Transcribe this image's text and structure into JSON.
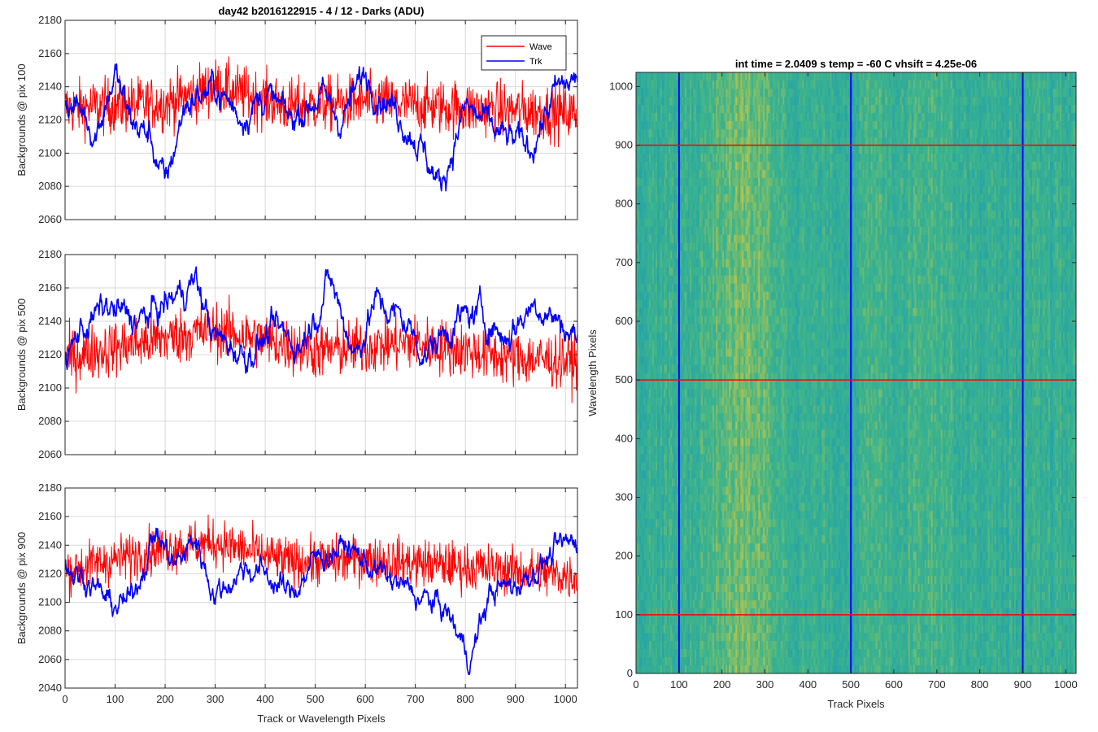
{
  "colors": {
    "wave": "#ff0000",
    "trk": "#0000ff",
    "grid": "#d9d9d9",
    "axis": "#262626",
    "image_low": "#1f9fb0",
    "image_mid": "#3fb58a",
    "image_high": "#cfc63f"
  },
  "chart_data": [
    {
      "type": "line",
      "title": "day42 b2016122915 - 4 / 12 - Darks (ADU)",
      "xlabel": "",
      "ylabel": "Backgrounds @ pix 100",
      "xlim": [
        0,
        1024
      ],
      "ylim": [
        2060,
        2180
      ],
      "yticks": [
        "2060",
        "2080",
        "2100",
        "2120",
        "2140",
        "2160",
        "2180"
      ],
      "grid": true,
      "legend": {
        "position": "top-right",
        "entries": [
          "Wave",
          "Trk"
        ]
      },
      "series": [
        {
          "name": "Wave",
          "mean": 2127,
          "noise": 14,
          "trend": [
            [
              0,
              2127
            ],
            [
              200,
              2130
            ],
            [
              300,
              2140
            ],
            [
              450,
              2128
            ],
            [
              600,
              2131
            ],
            [
              800,
              2127
            ],
            [
              1024,
              2124
            ]
          ]
        },
        {
          "name": "Trk",
          "mean": 2128,
          "noise": 4,
          "trend": [
            [
              0,
              2131
            ],
            [
              40,
              2124
            ],
            [
              60,
              2112
            ],
            [
              100,
              2148
            ],
            [
              130,
              2120
            ],
            [
              170,
              2110
            ],
            [
              200,
              2080
            ],
            [
              240,
              2130
            ],
            [
              300,
              2140
            ],
            [
              350,
              2122
            ],
            [
              400,
              2135
            ],
            [
              450,
              2120
            ],
            [
              510,
              2135
            ],
            [
              550,
              2120
            ],
            [
              600,
              2148
            ],
            [
              650,
              2130
            ],
            [
              700,
              2110
            ],
            [
              750,
              2080
            ],
            [
              800,
              2128
            ],
            [
              870,
              2110
            ],
            [
              930,
              2103
            ],
            [
              980,
              2137
            ],
            [
              1024,
              2145
            ]
          ]
        }
      ]
    },
    {
      "type": "line",
      "title": "",
      "xlabel": "",
      "ylabel": "Backgrounds @ pix 500",
      "xlim": [
        0,
        1024
      ],
      "ylim": [
        2060,
        2180
      ],
      "yticks": [
        "2060",
        "2080",
        "2100",
        "2120",
        "2140",
        "2160",
        "2180"
      ],
      "grid": true,
      "series": [
        {
          "name": "Wave",
          "mean": 2125,
          "noise": 14,
          "trend": [
            [
              0,
              2118
            ],
            [
              200,
              2130
            ],
            [
              300,
              2135
            ],
            [
              500,
              2122
            ],
            [
              700,
              2127
            ],
            [
              900,
              2118
            ],
            [
              1024,
              2116
            ]
          ]
        },
        {
          "name": "Trk",
          "mean": 2135,
          "noise": 4,
          "trend": [
            [
              0,
              2113
            ],
            [
              30,
              2135
            ],
            [
              80,
              2148
            ],
            [
              150,
              2140
            ],
            [
              200,
              2150
            ],
            [
              260,
              2165
            ],
            [
              300,
              2130
            ],
            [
              360,
              2120
            ],
            [
              420,
              2135
            ],
            [
              470,
              2125
            ],
            [
              530,
              2165
            ],
            [
              580,
              2120
            ],
            [
              620,
              2152
            ],
            [
              680,
              2140
            ],
            [
              720,
              2120
            ],
            [
              780,
              2140
            ],
            [
              830,
              2145
            ],
            [
              880,
              2130
            ],
            [
              940,
              2152
            ],
            [
              1024,
              2130
            ]
          ]
        }
      ]
    },
    {
      "type": "line",
      "title": "",
      "xlabel": "Track or Wavelength Pixels",
      "ylabel": "Backgrounds @ pix 900",
      "xlim": [
        0,
        1024
      ],
      "ylim": [
        2040,
        2180
      ],
      "xticks": [
        "0",
        "100",
        "200",
        "300",
        "400",
        "500",
        "600",
        "700",
        "800",
        "900",
        "1000"
      ],
      "yticks": [
        "2040",
        "2060",
        "2080",
        "2100",
        "2120",
        "2140",
        "2160",
        "2180"
      ],
      "grid": true,
      "series": [
        {
          "name": "Wave",
          "mean": 2127,
          "noise": 14,
          "trend": [
            [
              0,
              2122
            ],
            [
              200,
              2138
            ],
            [
              300,
              2142
            ],
            [
              450,
              2128
            ],
            [
              600,
              2130
            ],
            [
              800,
              2125
            ],
            [
              1024,
              2118
            ]
          ]
        },
        {
          "name": "Trk",
          "mean": 2120,
          "noise": 4,
          "trend": [
            [
              0,
              2125
            ],
            [
              50,
              2115
            ],
            [
              90,
              2098
            ],
            [
              130,
              2100
            ],
            [
              180,
              2150
            ],
            [
              220,
              2125
            ],
            [
              260,
              2145
            ],
            [
              300,
              2105
            ],
            [
              360,
              2125
            ],
            [
              400,
              2120
            ],
            [
              450,
              2105
            ],
            [
              500,
              2130
            ],
            [
              560,
              2140
            ],
            [
              620,
              2122
            ],
            [
              700,
              2105
            ],
            [
              760,
              2095
            ],
            [
              810,
              2060
            ],
            [
              850,
              2108
            ],
            [
              900,
              2112
            ],
            [
              980,
              2135
            ],
            [
              1024,
              2145
            ]
          ]
        }
      ]
    },
    {
      "type": "heatmap",
      "title": "int time = 2.0409 s    temp = -60 C    vhsift = 4.25e-06",
      "xlabel": "Track Pixels",
      "ylabel": "Wavelength Pixels",
      "xlim": [
        0,
        1024
      ],
      "ylim": [
        0,
        1024
      ],
      "xticks": [
        "0",
        "100",
        "200",
        "300",
        "400",
        "500",
        "600",
        "700",
        "800",
        "900",
        "1000"
      ],
      "yticks": [
        "0",
        "100",
        "200",
        "300",
        "400",
        "500",
        "600",
        "700",
        "800",
        "900",
        "1000"
      ],
      "warm_column_bands": [
        [
          250,
          90,
          0.9
        ],
        [
          680,
          60,
          0.5
        ],
        [
          560,
          40,
          0.3
        ]
      ],
      "marker_lines": {
        "vertical_x": [
          100,
          500,
          900
        ],
        "horizontal_y": [
          100,
          500,
          900
        ]
      }
    }
  ]
}
